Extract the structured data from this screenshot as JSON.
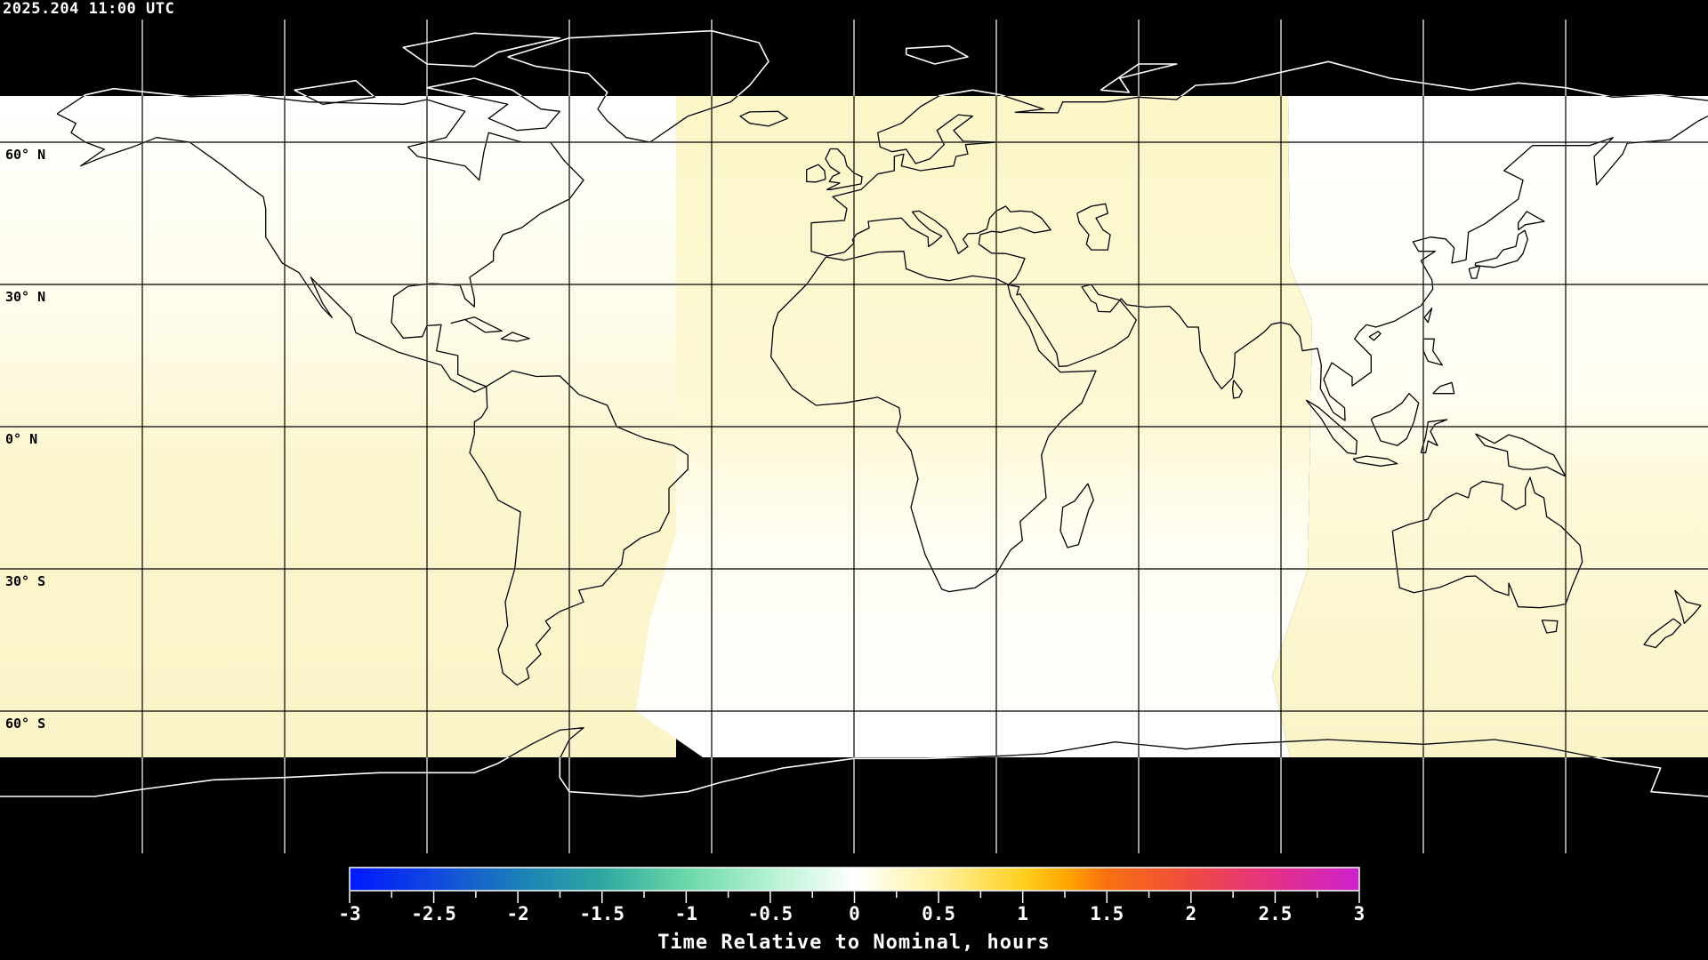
{
  "header": {
    "timestamp": "2025.204 11:00 UTC"
  },
  "map": {
    "projection": "equirectangular",
    "center_longitude": 0,
    "graticule_longitudes": [
      -150,
      -120,
      -90,
      -60,
      -30,
      0,
      30,
      60,
      90,
      120,
      150
    ],
    "graticule_latitudes": [
      60,
      30,
      0,
      -30,
      -60
    ],
    "lat_labels": [
      {
        "lat": 60,
        "text": "60° N"
      },
      {
        "lat": 30,
        "text": "30° N"
      },
      {
        "lat": 0,
        "text": "0° N"
      },
      {
        "lat": -30,
        "text": "30° S"
      },
      {
        "lat": -60,
        "text": "60° S"
      }
    ],
    "no_data_color": "#000000",
    "coastline_color_on_data": "#000000",
    "coastline_color_on_nodata": "#ffffff"
  },
  "colorbar": {
    "title": "Time Relative to Nominal, hours",
    "range": [
      -3,
      3
    ],
    "tick_labels": [
      "-3",
      "-2.5",
      "-2",
      "-1.5",
      "-1",
      "-0.5",
      "0",
      "0.5",
      "1",
      "1.5",
      "2",
      "2.5",
      "3"
    ],
    "colormap": [
      {
        "v": -3,
        "c": "#0018ff"
      },
      {
        "v": -2.5,
        "c": "#1048e0"
      },
      {
        "v": -2,
        "c": "#1a7fb8"
      },
      {
        "v": -1.5,
        "c": "#2ea8a0"
      },
      {
        "v": -1,
        "c": "#6cd8a8"
      },
      {
        "v": -0.5,
        "c": "#b4f2d2"
      },
      {
        "v": 0,
        "c": "#ffffff"
      },
      {
        "v": 0.5,
        "c": "#fff1a0"
      },
      {
        "v": 1,
        "c": "#ffd020"
      },
      {
        "v": 1.25,
        "c": "#ffa800"
      },
      {
        "v": 1.5,
        "c": "#f87010"
      },
      {
        "v": 2,
        "c": "#f04a40"
      },
      {
        "v": 2.5,
        "c": "#e43088"
      },
      {
        "v": 3,
        "c": "#cc22cc"
      }
    ]
  }
}
